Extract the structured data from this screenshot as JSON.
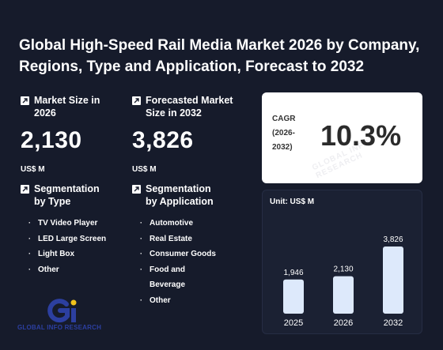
{
  "title": "Global High-Speed Rail Media Market 2026 by Company, Regions, Type and Application, Forecast to 2032",
  "market_size": {
    "label": "Market Size in 2026",
    "value": "2,130",
    "unit": "US$ M"
  },
  "forecast_size": {
    "label": "Forecasted Market Size in 2032",
    "value": "3,826",
    "unit": "US$ M"
  },
  "seg_type": {
    "label": "Segmentation by Type",
    "items": [
      "TV Video Player",
      "LED Large Screen",
      "Light Box",
      "Other"
    ]
  },
  "seg_app": {
    "label": "Segmentation by Application",
    "items": [
      "Automotive",
      "Real Estate",
      "Consumer Goods",
      "Food and Beverage",
      "Other"
    ]
  },
  "cagr": {
    "label": "CAGR (2026-2032)",
    "value": "10.3%"
  },
  "chart_data": {
    "type": "bar",
    "title": "",
    "unit_label": "Unit: US$ M",
    "categories": [
      "2025",
      "2026",
      "2032"
    ],
    "values": [
      1946,
      2130,
      3826
    ],
    "value_labels": [
      "1,946",
      "2,130",
      "3,826"
    ],
    "ylim": [
      0,
      3826
    ],
    "bar_color": "#dde9fb",
    "grid": false,
    "legend": "none"
  },
  "watermark_text": "GLOBAL INFO RESEARCH",
  "logo": {
    "text": "GLOBAL INFO RESEARCH"
  },
  "colors": {
    "background": "#161b2b",
    "logo_blue": "#2c3fa0",
    "logo_yellow": "#f2c21b"
  },
  "bullet_char": "·"
}
